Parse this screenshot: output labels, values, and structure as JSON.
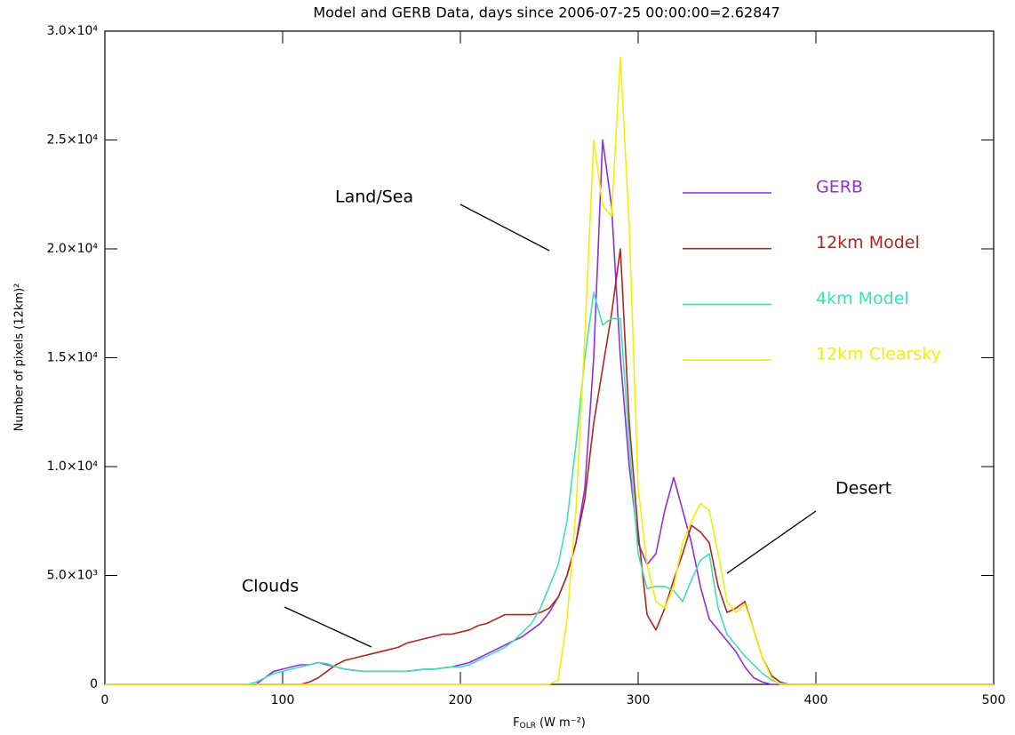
{
  "chart_data": {
    "type": "line",
    "title": "Model and GERB Data, days since 2006-07-25 00:00:00=2.62847",
    "x_label": {
      "main": "F",
      "sub": "OLR",
      "unit": "(W m⁻²)"
    },
    "y_label": "Number of pixels (12km)²",
    "x": [
      0,
      60,
      65,
      70,
      75,
      80,
      85,
      90,
      95,
      100,
      105,
      110,
      115,
      120,
      125,
      130,
      135,
      140,
      145,
      150,
      155,
      160,
      165,
      170,
      175,
      180,
      185,
      190,
      195,
      200,
      205,
      210,
      215,
      220,
      225,
      230,
      235,
      240,
      245,
      250,
      255,
      260,
      265,
      270,
      275,
      280,
      285,
      290,
      295,
      300,
      305,
      310,
      315,
      320,
      325,
      330,
      335,
      340,
      345,
      350,
      355,
      360,
      365,
      370,
      375,
      380,
      385,
      390,
      395,
      400,
      500
    ],
    "series": [
      {
        "name": "GERB",
        "color": "#8e2ee0",
        "values": [
          0,
          0,
          0,
          0,
          0,
          0,
          0,
          300,
          600,
          700,
          800,
          900,
          900,
          1000,
          900,
          800,
          700,
          650,
          600,
          600,
          600,
          600,
          600,
          600,
          650,
          700,
          700,
          750,
          800,
          900,
          1000,
          1200,
          1400,
          1600,
          1800,
          2000,
          2200,
          2500,
          2800,
          3300,
          4000,
          5000,
          6500,
          9000,
          15000,
          25000,
          22000,
          15000,
          10000,
          6500,
          5500,
          6000,
          8000,
          9500,
          8000,
          6500,
          4500,
          3000,
          2500,
          2000,
          1500,
          800,
          300,
          100,
          0,
          0,
          0,
          0,
          0,
          0,
          0
        ]
      },
      {
        "name": "12km Model",
        "color": "#b0261e",
        "values": [
          0,
          0,
          0,
          0,
          0,
          0,
          0,
          0,
          0,
          0,
          0,
          0,
          100,
          300,
          600,
          900,
          1100,
          1200,
          1300,
          1400,
          1500,
          1600,
          1700,
          1900,
          2000,
          2100,
          2200,
          2300,
          2300,
          2400,
          2500,
          2700,
          2800,
          3000,
          3200,
          3200,
          3200,
          3200,
          3300,
          3500,
          4000,
          5000,
          6500,
          8500,
          12000,
          14500,
          17000,
          20000,
          12000,
          7000,
          3200,
          2500,
          3500,
          4800,
          6000,
          7300,
          7000,
          6500,
          4500,
          3300,
          3500,
          3800,
          2500,
          1200,
          400,
          100,
          0,
          0,
          0,
          0,
          0
        ]
      },
      {
        "name": "4km Model",
        "color": "#3fe0b8",
        "values": [
          0,
          0,
          0,
          0,
          0,
          0,
          100,
          300,
          500,
          600,
          700,
          800,
          900,
          1000,
          950,
          800,
          700,
          650,
          600,
          600,
          600,
          600,
          600,
          600,
          650,
          700,
          700,
          750,
          800,
          800,
          900,
          1100,
          1300,
          1500,
          1700,
          2000,
          2400,
          2800,
          3500,
          4500,
          5500,
          7500,
          11000,
          15000,
          18000,
          16500,
          16800,
          16800,
          11000,
          6000,
          4400,
          4500,
          4500,
          4300,
          3800,
          4800,
          5700,
          6000,
          3500,
          2300,
          1800,
          1300,
          900,
          500,
          200,
          50,
          0,
          0,
          0,
          0,
          0
        ]
      },
      {
        "name": "12km Clearsky",
        "color": "#f2f000",
        "values": [
          0,
          0,
          0,
          0,
          0,
          0,
          0,
          0,
          0,
          0,
          0,
          0,
          0,
          0,
          0,
          0,
          0,
          0,
          0,
          0,
          0,
          0,
          0,
          0,
          0,
          0,
          0,
          0,
          0,
          0,
          0,
          0,
          0,
          0,
          0,
          0,
          0,
          0,
          0,
          0,
          200,
          3000,
          8000,
          16000,
          25000,
          22000,
          21500,
          28800,
          21000,
          9000,
          5500,
          3800,
          3500,
          4500,
          6500,
          7500,
          8300,
          8000,
          6000,
          3800,
          3300,
          3700,
          2500,
          1200,
          300,
          0,
          0,
          0,
          0,
          0,
          0
        ]
      }
    ],
    "xlim": [
      0,
      500
    ],
    "xticks": [
      0,
      100,
      200,
      300,
      400,
      500
    ],
    "ylim": [
      0,
      30000
    ],
    "yticks": [
      0,
      {
        "value": 5000,
        "label": "5.0×10³"
      },
      {
        "value": 10000,
        "label": "1.0×10⁴"
      },
      {
        "value": 15000,
        "label": "1.5×10⁴"
      },
      {
        "value": 20000,
        "label": "2.0×10⁴"
      },
      {
        "value": 25000,
        "label": "2.5×10⁴"
      },
      {
        "value": 30000,
        "label": "3.0×10⁴"
      }
    ],
    "annotations": [
      "Land/Sea",
      "Clouds",
      "Desert"
    ]
  }
}
